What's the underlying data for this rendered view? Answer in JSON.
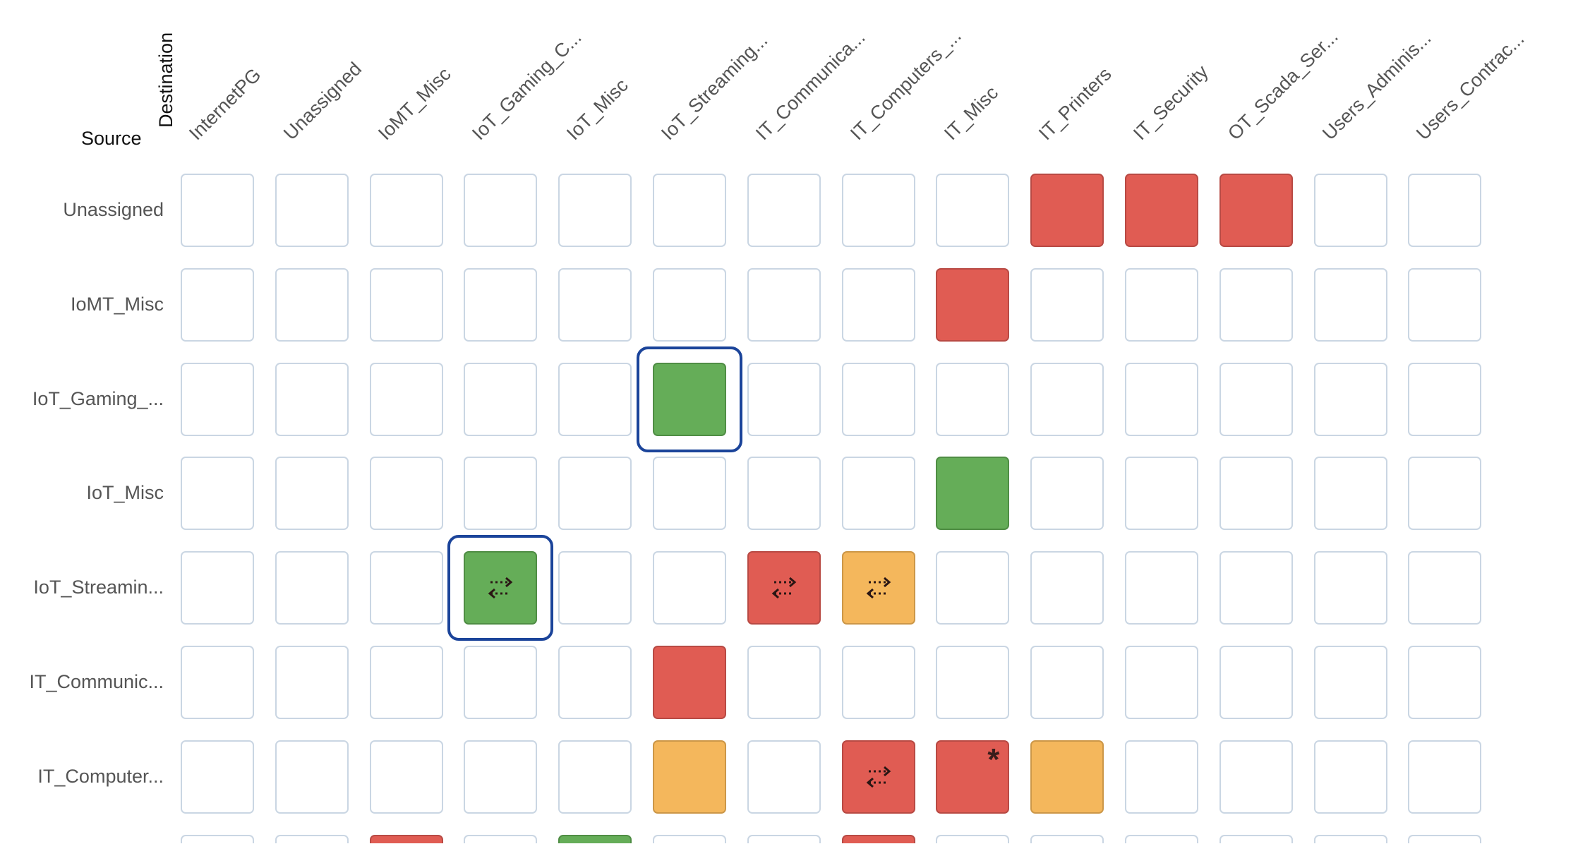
{
  "axes": {
    "source_label": "Source",
    "destination_label": "Destination"
  },
  "columns": [
    "InternetPG",
    "Unassigned",
    "IoMT_Misc",
    "IoT_Gaming_C...",
    "IoT_Misc",
    "IoT_Streaming...",
    "IT_Communica...",
    "IT_Computers_...",
    "IT_Misc",
    "IT_Printers",
    "IT_Security",
    "OT_Scada_Ser...",
    "Users_Adminis...",
    "Users_Contrac..."
  ],
  "rows": [
    {
      "label": "Unassigned",
      "cells": [
        "",
        "",
        "",
        "",
        "",
        "",
        "",
        "",
        "",
        "red",
        "red",
        "red",
        "",
        ""
      ]
    },
    {
      "label": "IoMT_Misc",
      "cells": [
        "",
        "",
        "",
        "",
        "",
        "",
        "",
        "",
        "red",
        "",
        "",
        "",
        "",
        ""
      ]
    },
    {
      "label": "IoT_Gaming_...",
      "cells": [
        "",
        "",
        "",
        "",
        "",
        "green",
        "",
        "",
        "",
        "",
        "",
        "",
        "",
        ""
      ]
    },
    {
      "label": "IoT_Misc",
      "cells": [
        "",
        "",
        "",
        "",
        "",
        "",
        "",
        "",
        "green",
        "",
        "",
        "",
        "",
        ""
      ]
    },
    {
      "label": "IoT_Streamin...",
      "cells": [
        "",
        "",
        "",
        "green",
        "",
        "",
        "red",
        "orange",
        "",
        "",
        "",
        "",
        "",
        ""
      ]
    },
    {
      "label": "IT_Communic...",
      "cells": [
        "",
        "",
        "",
        "",
        "",
        "red",
        "",
        "",
        "",
        "",
        "",
        "",
        "",
        ""
      ]
    },
    {
      "label": "IT_Computer...",
      "cells": [
        "",
        "",
        "",
        "",
        "",
        "orange",
        "",
        "red",
        "red",
        "orange",
        "",
        "",
        "",
        ""
      ]
    }
  ],
  "partial_row": {
    "cells": [
      "",
      "",
      "red",
      "",
      "green",
      "",
      "",
      "red",
      "",
      "",
      "",
      "",
      "",
      ""
    ]
  },
  "bidirectional_icon": "bidirectional-arrows-icon",
  "bidirectional_cells": [
    [
      4,
      3
    ],
    [
      4,
      6
    ],
    [
      4,
      7
    ],
    [
      6,
      7
    ]
  ],
  "starred_cells": [
    [
      6,
      8
    ]
  ],
  "star_symbol": "*",
  "selected_cells": [
    [
      2,
      5
    ],
    [
      4,
      3
    ]
  ],
  "colors": {
    "red": "#e05c53",
    "green": "#65ad58",
    "orange": "#f4b75c",
    "empty_border": "#cad6e3",
    "selection_border": "#1b449a"
  }
}
